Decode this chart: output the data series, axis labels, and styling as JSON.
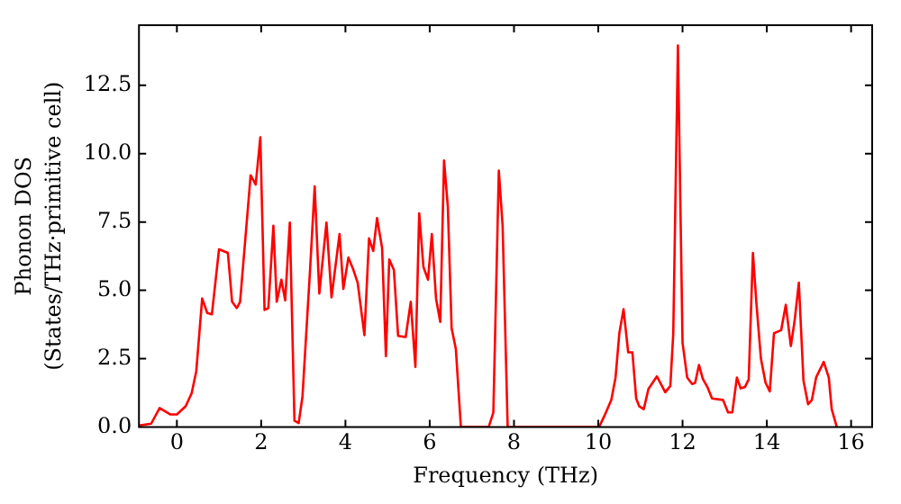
{
  "chart_data": {
    "type": "line",
    "xlabel": "Frequency (THz)",
    "ylabel": "Phonon DOS\n(States/THz·primitive cell)",
    "xlim": [
      -0.9,
      16.5
    ],
    "ylim": [
      0,
      14.7
    ],
    "xticks": [
      0,
      2,
      4,
      6,
      8,
      10,
      12,
      14,
      16
    ],
    "yticks": [
      {
        "value": 0,
        "label": "0.0"
      },
      2.5,
      {
        "value": 5,
        "label": "5.0"
      },
      7.5,
      {
        "value": 10,
        "label": "10.0"
      },
      12.5
    ],
    "grid": false,
    "legend": false,
    "marker": "none",
    "line_style": "solid",
    "series": [
      {
        "color": "#ff0000",
        "x": [
          -0.9,
          -0.61,
          -0.41,
          -0.16,
          0.0,
          0.21,
          0.35,
          0.46,
          0.6,
          0.72,
          0.83,
          1.0,
          1.21,
          1.31,
          1.42,
          1.5,
          1.75,
          1.87,
          1.98,
          2.08,
          2.17,
          2.29,
          2.37,
          2.48,
          2.57,
          2.68,
          2.79,
          2.89,
          2.98,
          3.16,
          3.27,
          3.38,
          3.55,
          3.67,
          3.86,
          3.95,
          4.07,
          4.19,
          4.29,
          4.45,
          4.56,
          4.66,
          4.75,
          4.87,
          4.96,
          5.04,
          5.15,
          5.25,
          5.43,
          5.55,
          5.66,
          5.75,
          5.85,
          5.96,
          6.05,
          6.15,
          6.25,
          6.34,
          6.43,
          6.52,
          6.62,
          6.74,
          7.4,
          7.51,
          7.64,
          7.73,
          7.85,
          10.02,
          10.15,
          10.31,
          10.41,
          10.5,
          10.6,
          10.71,
          10.81,
          10.9,
          10.97,
          11.08,
          11.19,
          11.39,
          11.59,
          11.71,
          11.78,
          11.89,
          12.0,
          12.11,
          12.23,
          12.3,
          12.39,
          12.48,
          12.59,
          12.7,
          12.96,
          13.08,
          13.18,
          13.29,
          13.38,
          13.48,
          13.57,
          13.67,
          13.75,
          13.86,
          13.97,
          14.07,
          14.17,
          14.34,
          14.45,
          14.57,
          14.66,
          14.76,
          14.87,
          14.98,
          15.07,
          15.17,
          15.35,
          15.47,
          15.54,
          15.66
        ],
        "values": [
          0.05,
          0.12,
          0.69,
          0.46,
          0.46,
          0.76,
          1.23,
          2.04,
          4.7,
          4.17,
          4.12,
          6.5,
          6.37,
          4.58,
          4.35,
          4.58,
          9.21,
          8.87,
          10.6,
          4.28,
          4.35,
          7.36,
          4.58,
          5.39,
          4.63,
          7.48,
          0.23,
          0.14,
          1.11,
          5.74,
          8.8,
          4.88,
          7.48,
          4.74,
          7.06,
          5.05,
          6.2,
          5.74,
          5.28,
          3.36,
          6.9,
          6.44,
          7.64,
          6.55,
          2.59,
          6.13,
          5.74,
          3.33,
          3.29,
          4.58,
          2.2,
          7.82,
          5.86,
          5.39,
          7.06,
          4.7,
          3.84,
          9.75,
          8.06,
          3.61,
          2.85,
          0,
          0,
          0.53,
          9.38,
          7.36,
          0,
          0,
          0.42,
          0.99,
          1.81,
          3.43,
          4.31,
          2.73,
          2.73,
          1.04,
          0.76,
          0.65,
          1.39,
          1.85,
          1.27,
          1.5,
          3.43,
          13.96,
          3.08,
          1.81,
          1.57,
          1.62,
          2.27,
          1.76,
          1.46,
          1.04,
          0.99,
          0.53,
          0.53,
          1.81,
          1.41,
          1.46,
          1.74,
          6.37,
          4.58,
          2.5,
          1.62,
          1.3,
          3.43,
          3.54,
          4.47,
          2.96,
          3.89,
          5.28,
          1.69,
          0.83,
          0.99,
          1.81,
          2.38,
          1.81,
          0.65,
          0
        ]
      }
    ]
  }
}
